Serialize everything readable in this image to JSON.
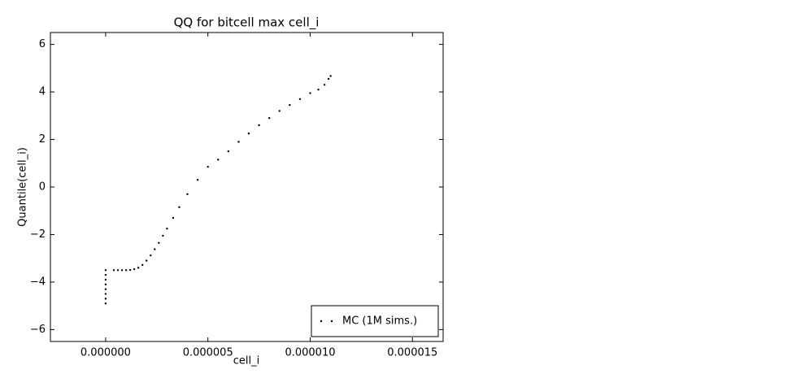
{
  "chart_data": {
    "type": "scatter",
    "title": "QQ for bitcell max cell_i",
    "xlabel": "cell_i",
    "ylabel": "Quantile(cell_i)",
    "series": [
      {
        "name": "MC (1M sims.)",
        "color": "#000000",
        "x": [
          0,
          0,
          0,
          0,
          0,
          0,
          0,
          0,
          4e-07,
          6e-07,
          8e-07,
          1e-06,
          1.2e-06,
          1.4e-06,
          1.6e-06,
          1.8e-06,
          2e-06,
          2.2e-06,
          2.4e-06,
          2.6e-06,
          2.8e-06,
          3e-06,
          3.3e-06,
          3.6e-06,
          4e-06,
          4.5e-06,
          5e-06,
          5.5e-06,
          6e-06,
          6.5e-06,
          7e-06,
          7.5e-06,
          8e-06,
          8.5e-06,
          9e-06,
          9.5e-06,
          1e-05,
          1.04e-05,
          1.07e-05,
          1.09e-05,
          1.1e-05
        ],
        "values": [
          -3.5,
          -3.7,
          -3.9,
          -4.1,
          -4.3,
          -4.5,
          -4.7,
          -4.9,
          -3.5,
          -3.5,
          -3.5,
          -3.5,
          -3.49,
          -3.46,
          -3.4,
          -3.28,
          -3.1,
          -2.88,
          -2.62,
          -2.35,
          -2.05,
          -1.75,
          -1.3,
          -0.85,
          -0.3,
          0.3,
          0.85,
          1.15,
          1.5,
          1.9,
          2.25,
          2.6,
          2.9,
          3.2,
          3.45,
          3.7,
          3.95,
          4.1,
          4.3,
          4.55,
          4.67
        ]
      }
    ],
    "xlim": [
      -2.7e-06,
      1.65e-05
    ],
    "xticks": [
      {
        "value": 0,
        "label": "0.000000"
      },
      {
        "value": 5e-06,
        "label": "0.000005"
      },
      {
        "value": 1e-05,
        "label": "0.000010"
      },
      {
        "value": 1.5e-05,
        "label": "0.000015"
      }
    ],
    "ylim": [
      -6.5,
      6.5
    ],
    "yticks": [
      {
        "value": -6,
        "label": "−6"
      },
      {
        "value": -4,
        "label": "−4"
      },
      {
        "value": -2,
        "label": "−2"
      },
      0,
      2,
      4,
      6
    ],
    "legend": "lower right",
    "grid": false
  }
}
